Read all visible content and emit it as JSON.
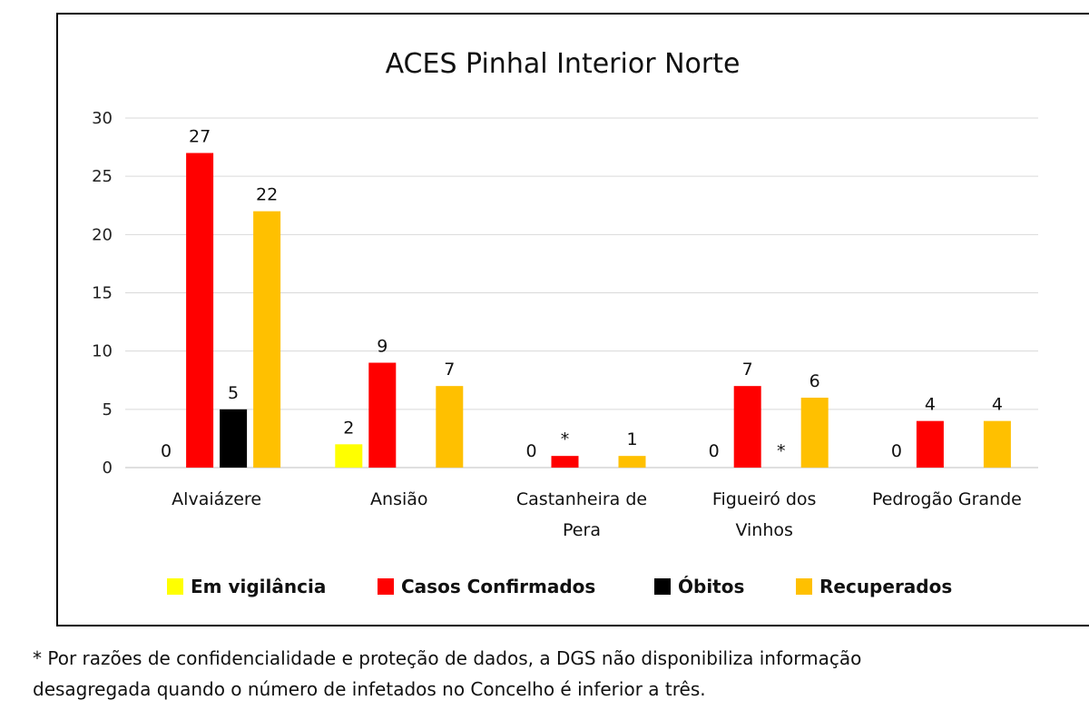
{
  "chart_data": {
    "type": "bar",
    "title": "ACES Pinhal Interior Norte",
    "categories": [
      "Alvaiázere",
      "Ansião",
      "Castanheira de Pera",
      "Figueiró dos Vinhos",
      "Pedrogão Grande"
    ],
    "category_lines": [
      [
        "Alvaiázere"
      ],
      [
        "Ansião"
      ],
      [
        "Castanheira de",
        "Pera"
      ],
      [
        "Figueiró dos",
        "Vinhos"
      ],
      [
        "Pedrogão Grande"
      ]
    ],
    "series": [
      {
        "name": "Em vigilância",
        "color": "#FFFF00",
        "values": [
          0,
          2,
          0,
          0,
          0
        ],
        "labels": [
          "0",
          "2",
          "0",
          "0",
          "0"
        ]
      },
      {
        "name": "Casos Confirmados",
        "color": "#FF0000",
        "values": [
          27,
          9,
          1,
          7,
          4
        ],
        "labels": [
          "27",
          "9",
          "*",
          "7",
          "4"
        ]
      },
      {
        "name": "Óbitos",
        "color": "#000000",
        "values": [
          5,
          null,
          null,
          null,
          null
        ],
        "labels": [
          "5",
          "",
          "",
          "*",
          ""
        ]
      },
      {
        "name": "Recuperados",
        "color": "#FFC000",
        "values": [
          22,
          7,
          1,
          6,
          4
        ],
        "labels": [
          "22",
          "7",
          "1",
          "6",
          "4"
        ]
      }
    ],
    "ylim": [
      0,
      30
    ],
    "yticks": [
      0,
      5,
      10,
      15,
      20,
      25,
      30
    ],
    "grid": true,
    "legend_position": "bottom"
  },
  "footnote": {
    "line1": "* Por razões de confidencialidade e proteção de dados, a DGS não disponibiliza informação",
    "line2": "desagregada quando o número de infetados no Concelho é inferior a três."
  }
}
